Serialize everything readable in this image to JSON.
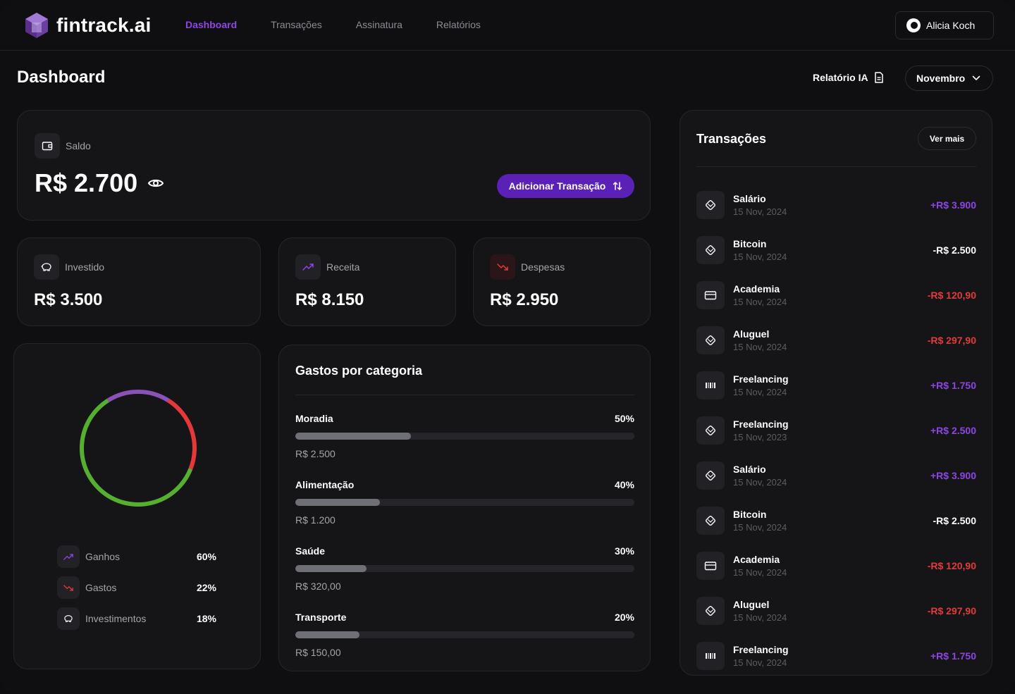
{
  "header": {
    "brand": "fintrack.ai",
    "nav": [
      "Dashboard",
      "Transações",
      "Assinatura",
      "Relatórios"
    ],
    "active_nav": "Dashboard",
    "user_name": "Alicia Koch"
  },
  "page": {
    "title": "Dashboard",
    "ai_report_label": "Relatório IA",
    "month": "Novembro"
  },
  "balance": {
    "label": "Saldo",
    "value": "R$ 2.700",
    "add_button": "Adicionar Transação"
  },
  "summary": [
    {
      "label": "Investido",
      "value": "R$ 3.500",
      "icon": "piggy-bank-icon"
    },
    {
      "label": "Receita",
      "value": "R$ 8.150",
      "icon": "trending-up-icon"
    },
    {
      "label": "Despesas",
      "value": "R$ 2.950",
      "icon": "trending-down-icon"
    }
  ],
  "distribution": {
    "segments": [
      {
        "label": "Ganhos",
        "percent": "60%",
        "value": 60,
        "color": "#55b030"
      },
      {
        "label": "Gastos",
        "percent": "22%",
        "value": 22,
        "color": "#e5383b"
      },
      {
        "label": "Investimentos",
        "percent": "18%",
        "value": 18,
        "color": "#8a52b9"
      }
    ]
  },
  "categories": {
    "title": "Gastos por categoria",
    "items": [
      {
        "name": "Moradia",
        "percent": "50%",
        "fill": 0.34,
        "amount": "R$ 2.500"
      },
      {
        "name": "Alimentação",
        "percent": "40%",
        "fill": 0.25,
        "amount": "R$ 1.200"
      },
      {
        "name": "Saúde",
        "percent": "30%",
        "fill": 0.21,
        "amount": "R$ 320,00"
      },
      {
        "name": "Transporte",
        "percent": "20%",
        "fill": 0.19,
        "amount": "R$ 150,00"
      }
    ]
  },
  "transactions": {
    "title": "Transações",
    "more_label": "Ver mais",
    "items": [
      {
        "name": "Salário",
        "date": "15 Nov, 2024",
        "amount": "+R$ 3.900",
        "kind": "pos",
        "icon": "pix-icon"
      },
      {
        "name": "Bitcoin",
        "date": "15 Nov, 2024",
        "amount": "-R$ 2.500",
        "kind": "neg-w",
        "icon": "pix-icon"
      },
      {
        "name": "Academia",
        "date": "15 Nov, 2024",
        "amount": "-R$ 120,90",
        "kind": "neg-r",
        "icon": "card-icon"
      },
      {
        "name": "Aluguel",
        "date": "15 Nov, 2024",
        "amount": "-R$ 297,90",
        "kind": "neg-r",
        "icon": "pix-icon"
      },
      {
        "name": "Freelancing",
        "date": "15 Nov, 2024",
        "amount": "+R$ 1.750",
        "kind": "pos",
        "icon": "barcode-icon"
      },
      {
        "name": "Freelancing",
        "date": "15 Nov, 2023",
        "amount": "+R$ 2.500",
        "kind": "pos",
        "icon": "pix-icon"
      },
      {
        "name": "Salário",
        "date": "15 Nov, 2024",
        "amount": "+R$ 3.900",
        "kind": "pos",
        "icon": "pix-icon"
      },
      {
        "name": "Bitcoin",
        "date": "15 Nov, 2024",
        "amount": "-R$ 2.500",
        "kind": "neg-w",
        "icon": "pix-icon"
      },
      {
        "name": "Academia",
        "date": "15 Nov, 2024",
        "amount": "-R$ 120,90",
        "kind": "neg-r",
        "icon": "card-icon"
      },
      {
        "name": "Aluguel",
        "date": "15 Nov, 2024",
        "amount": "-R$ 297,90",
        "kind": "neg-r",
        "icon": "pix-icon"
      },
      {
        "name": "Freelancing",
        "date": "15 Nov, 2024",
        "amount": "+R$ 1.750",
        "kind": "pos",
        "icon": "barcode-icon"
      }
    ]
  }
}
